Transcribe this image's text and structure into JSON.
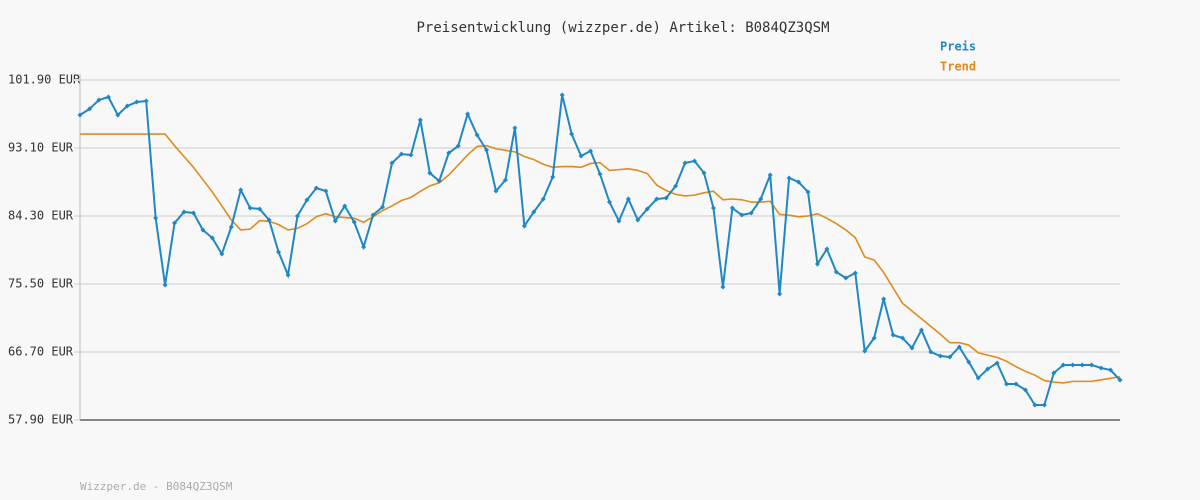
{
  "chart_data": {
    "type": "line",
    "title": "Preisentwicklung (wizzper.de) Artikel: B084QZ3QSM",
    "footer": "Wizzper.de - B084QZ3QSM",
    "ylim": [
      57.9,
      101.9
    ],
    "yticks": [
      {
        "value": 57.9,
        "label": "57.90 EUR"
      },
      {
        "value": 66.7,
        "label": "66.70 EUR"
      },
      {
        "value": 75.5,
        "label": "75.50 EUR"
      },
      {
        "value": 84.3,
        "label": "84.30 EUR"
      },
      {
        "value": 93.1,
        "label": "93.10 EUR"
      },
      {
        "value": 101.9,
        "label": "101.90 EUR"
      }
    ],
    "grid": true,
    "legend": "top-right",
    "series": [
      {
        "name": "Preis",
        "color": "#1f88c4",
        "markers": true,
        "values": [
          97.37,
          98.15,
          99.31,
          99.7,
          97.37,
          98.54,
          99.05,
          99.18,
          84.04,
          75.37,
          83.39,
          84.82,
          84.69,
          82.49,
          81.45,
          79.38,
          82.88,
          87.66,
          85.33,
          85.21,
          83.78,
          79.64,
          76.66,
          84.3,
          86.37,
          87.92,
          87.53,
          83.65,
          85.59,
          83.52,
          80.29,
          84.43,
          85.46,
          91.16,
          92.32,
          92.19,
          96.72,
          89.86,
          88.83,
          92.45,
          93.36,
          97.5,
          94.78,
          92.84,
          87.53,
          88.96,
          95.69,
          83.01,
          84.82,
          86.5,
          89.35,
          99.96,
          94.91,
          92.06,
          92.71,
          89.74,
          86.11,
          83.65,
          86.5,
          83.78,
          85.21,
          86.5,
          86.63,
          88.18,
          91.16,
          91.42,
          89.86,
          85.33,
          75.11,
          85.33,
          84.43,
          84.69,
          86.5,
          89.61,
          74.21,
          89.22,
          88.7,
          87.41,
          78.09,
          80.03,
          77.05,
          76.28,
          76.92,
          66.83,
          68.51,
          73.56,
          68.9,
          68.51,
          67.22,
          69.55,
          66.7,
          66.18,
          66.05,
          67.35,
          65.4,
          63.33,
          64.5,
          65.28,
          62.56,
          62.56,
          61.78,
          59.84,
          59.84,
          63.98,
          65.02,
          65.02,
          65.02,
          65.02,
          64.63,
          64.37,
          63.07
        ]
      },
      {
        "name": "Trend",
        "color": "#e08a1e",
        "markers": false,
        "values": [
          94.91,
          94.91,
          94.91,
          94.91,
          94.91,
          94.91,
          94.91,
          94.91,
          94.91,
          94.91,
          93.4,
          92.0,
          90.6,
          89.0,
          87.4,
          85.6,
          83.8,
          82.5,
          82.6,
          83.7,
          83.6,
          83.2,
          82.5,
          82.7,
          83.3,
          84.2,
          84.6,
          84.2,
          84.1,
          84.0,
          83.5,
          84.2,
          85.0,
          85.6,
          86.3,
          86.7,
          87.5,
          88.2,
          88.6,
          89.6,
          90.9,
          92.2,
          93.3,
          93.4,
          93.0,
          92.8,
          92.6,
          92.0,
          91.6,
          91.0,
          90.6,
          90.7,
          90.7,
          90.6,
          91.1,
          91.2,
          90.2,
          90.3,
          90.4,
          90.2,
          89.8,
          88.3,
          87.6,
          87.1,
          86.9,
          87.0,
          87.3,
          87.5,
          86.4,
          86.5,
          86.4,
          86.1,
          86.1,
          86.2,
          84.5,
          84.4,
          84.2,
          84.3,
          84.6,
          84.0,
          83.3,
          82.5,
          81.5,
          79.0,
          78.6,
          77.0,
          75.0,
          73.0,
          72.0,
          71.0,
          70.0,
          69.0,
          67.9,
          67.9,
          67.6,
          66.6,
          66.3,
          66.0,
          65.5,
          64.8,
          64.2,
          63.7,
          63.0,
          62.8,
          62.7,
          62.9,
          62.9,
          62.9,
          63.1,
          63.3,
          63.5
        ]
      }
    ]
  }
}
